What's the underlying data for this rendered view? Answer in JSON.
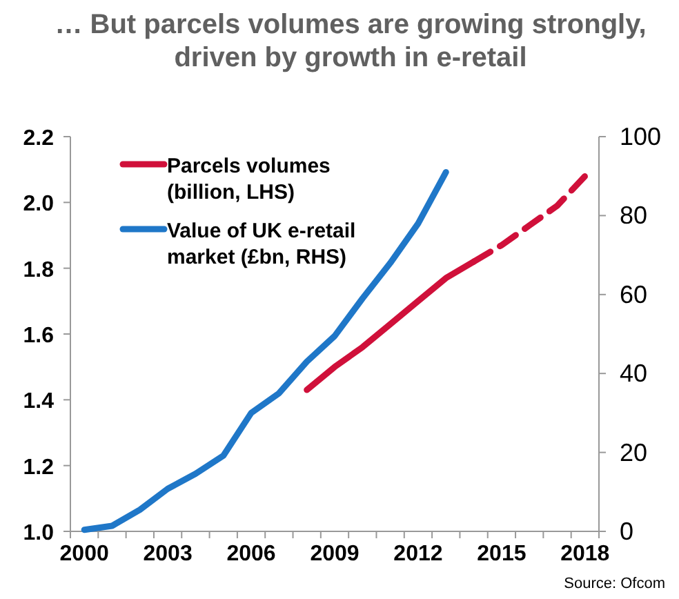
{
  "chart_data": {
    "type": "line",
    "title": "… But parcels volumes are growing strongly, driven by growth in e-retail",
    "categories": [
      "2000",
      null,
      null,
      "2003",
      null,
      null,
      "2006",
      null,
      null,
      "2009",
      null,
      null,
      "2012",
      null,
      null,
      "2015",
      null,
      null,
      "2018"
    ],
    "series": [
      {
        "name": "Parcels volumes (billion, LHS)",
        "color": "#d0103a",
        "line_style": "solid",
        "values": [
          null,
          null,
          null,
          null,
          null,
          null,
          null,
          null,
          1.43,
          1.5,
          1.56,
          1.63,
          1.7,
          1.77,
          1.82,
          null,
          null,
          null,
          null
        ]
      },
      {
        "color": "#d0103a",
        "line_style": "dashed",
        "values": [
          null,
          null,
          null,
          null,
          null,
          null,
          null,
          null,
          null,
          null,
          null,
          null,
          null,
          null,
          1.82,
          1.87,
          1.93,
          1.99,
          2.08
        ]
      },
      {
        "name": "Value of UK e-retail market (£bn, RHS)",
        "color": "#1f77c8",
        "axis": "y2",
        "line_style": "solid",
        "values": [
          0.4,
          1.4,
          5.5,
          10.8,
          14.6,
          19.2,
          30,
          35,
          43,
          49.5,
          59,
          68,
          78,
          91,
          null,
          null,
          null,
          null,
          null
        ]
      }
    ],
    "ylim": [
      1.0,
      2.2
    ],
    "yticks": [
      {
        "value": 1.0,
        "label": "1.0"
      },
      {
        "value": 1.2,
        "label": "1.2"
      },
      {
        "value": 1.4,
        "label": "1.4"
      },
      {
        "value": 1.6,
        "label": "1.6"
      },
      {
        "value": 1.8,
        "label": "1.8"
      },
      {
        "value": 2.0,
        "label": "2.0"
      },
      {
        "value": 2.2,
        "label": "2.2"
      }
    ],
    "y2lim": [
      0,
      100
    ],
    "y2ticks": [
      0,
      20,
      40,
      60,
      80,
      100
    ],
    "legend": "top left",
    "annotations": [
      "Source: Ofcom"
    ]
  }
}
